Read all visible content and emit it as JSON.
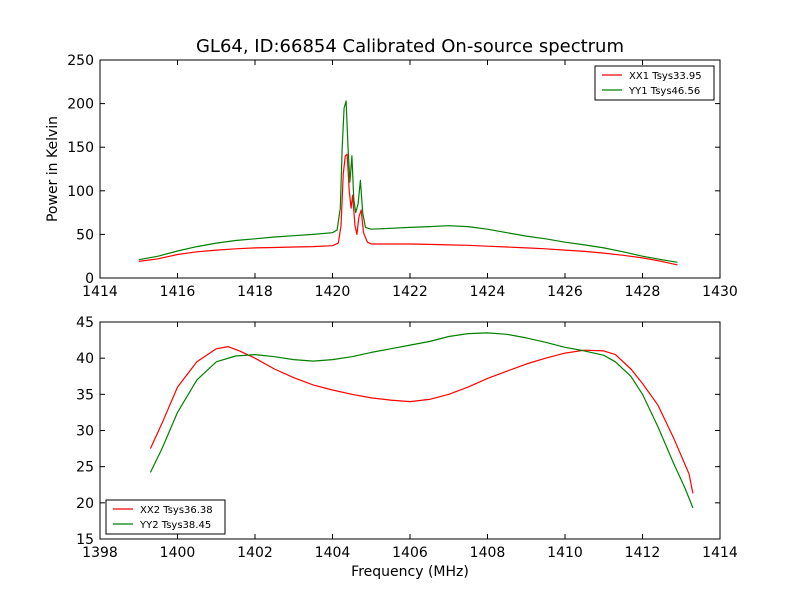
{
  "chart_data": [
    {
      "type": "line",
      "title": "GL64, ID:66854 Calibrated On-source spectrum",
      "xlabel": "",
      "ylabel": "Power in Kelvin",
      "xlim": [
        1414,
        1430
      ],
      "ylim": [
        0,
        250
      ],
      "xticks": [
        1414,
        1416,
        1418,
        1420,
        1422,
        1424,
        1426,
        1428,
        1430
      ],
      "yticks": [
        0,
        50,
        100,
        150,
        200,
        250
      ],
      "legend_position": "top-right",
      "grid": false,
      "series": [
        {
          "name": "XX1 Tsys33.95",
          "color": "#ff0000",
          "points": [
            [
              1415.0,
              19
            ],
            [
              1415.5,
              22
            ],
            [
              1416.0,
              27
            ],
            [
              1416.5,
              30
            ],
            [
              1417.0,
              32
            ],
            [
              1417.5,
              33.5
            ],
            [
              1418.0,
              34.5
            ],
            [
              1418.5,
              35
            ],
            [
              1419.0,
              35.5
            ],
            [
              1419.5,
              36
            ],
            [
              1420.0,
              37
            ],
            [
              1420.15,
              40
            ],
            [
              1420.22,
              60
            ],
            [
              1420.28,
              120
            ],
            [
              1420.33,
              140
            ],
            [
              1420.38,
              142
            ],
            [
              1420.43,
              100
            ],
            [
              1420.48,
              80
            ],
            [
              1420.52,
              95
            ],
            [
              1420.58,
              60
            ],
            [
              1420.63,
              50
            ],
            [
              1420.68,
              70
            ],
            [
              1420.74,
              78
            ],
            [
              1420.8,
              52
            ],
            [
              1420.9,
              41
            ],
            [
              1421.0,
              39
            ],
            [
              1421.5,
              39
            ],
            [
              1422.0,
              39
            ],
            [
              1422.5,
              38.5
            ],
            [
              1423.0,
              38
            ],
            [
              1423.5,
              37.5
            ],
            [
              1424.0,
              36.5
            ],
            [
              1424.5,
              35.5
            ],
            [
              1425.0,
              34.5
            ],
            [
              1425.5,
              33.5
            ],
            [
              1426.0,
              32
            ],
            [
              1426.5,
              30.5
            ],
            [
              1427.0,
              28.5
            ],
            [
              1427.5,
              26
            ],
            [
              1428.0,
              23
            ],
            [
              1428.5,
              19
            ],
            [
              1428.9,
              15
            ]
          ]
        },
        {
          "name": "YY1 Tsys46.56",
          "color": "#008000",
          "points": [
            [
              1415.0,
              21
            ],
            [
              1415.5,
              25
            ],
            [
              1416.0,
              31
            ],
            [
              1416.5,
              36
            ],
            [
              1417.0,
              40
            ],
            [
              1417.5,
              43
            ],
            [
              1418.0,
              45
            ],
            [
              1418.5,
              47
            ],
            [
              1419.0,
              48.5
            ],
            [
              1419.5,
              50
            ],
            [
              1420.0,
              52
            ],
            [
              1420.12,
              55
            ],
            [
              1420.2,
              80
            ],
            [
              1420.25,
              150
            ],
            [
              1420.3,
              195
            ],
            [
              1420.35,
              203
            ],
            [
              1420.4,
              150
            ],
            [
              1420.45,
              110
            ],
            [
              1420.5,
              140
            ],
            [
              1420.55,
              90
            ],
            [
              1420.6,
              75
            ],
            [
              1420.66,
              85
            ],
            [
              1420.72,
              112
            ],
            [
              1420.78,
              75
            ],
            [
              1420.85,
              58
            ],
            [
              1421.0,
              56
            ],
            [
              1421.5,
              57
            ],
            [
              1422.0,
              58
            ],
            [
              1422.5,
              59
            ],
            [
              1423.0,
              60
            ],
            [
              1423.5,
              59
            ],
            [
              1424.0,
              56
            ],
            [
              1424.5,
              52
            ],
            [
              1425.0,
              48
            ],
            [
              1425.5,
              45
            ],
            [
              1426.0,
              41
            ],
            [
              1426.5,
              38
            ],
            [
              1427.0,
              34.5
            ],
            [
              1427.5,
              30
            ],
            [
              1428.0,
              25
            ],
            [
              1428.5,
              21
            ],
            [
              1428.9,
              18
            ]
          ]
        }
      ]
    },
    {
      "type": "line",
      "title": "",
      "xlabel": "Frequency (MHz)",
      "ylabel": "",
      "xlim": [
        1398,
        1414
      ],
      "ylim": [
        15,
        45
      ],
      "xticks": [
        1398,
        1400,
        1402,
        1404,
        1406,
        1408,
        1410,
        1412,
        1414
      ],
      "yticks": [
        15,
        20,
        25,
        30,
        35,
        40,
        45
      ],
      "legend_position": "bottom-left",
      "grid": false,
      "series": [
        {
          "name": "XX2 Tsys36.38",
          "color": "#ff0000",
          "points": [
            [
              1399.3,
              27.5
            ],
            [
              1399.6,
              31
            ],
            [
              1400.0,
              36
            ],
            [
              1400.5,
              39.5
            ],
            [
              1401.0,
              41.3
            ],
            [
              1401.3,
              41.6
            ],
            [
              1401.6,
              41
            ],
            [
              1402.0,
              40
            ],
            [
              1402.5,
              38.5
            ],
            [
              1403.0,
              37.3
            ],
            [
              1403.5,
              36.3
            ],
            [
              1404.0,
              35.6
            ],
            [
              1404.5,
              35
            ],
            [
              1405.0,
              34.5
            ],
            [
              1405.5,
              34.2
            ],
            [
              1406.0,
              34
            ],
            [
              1406.5,
              34.3
            ],
            [
              1407.0,
              35
            ],
            [
              1407.5,
              36
            ],
            [
              1408.0,
              37.2
            ],
            [
              1408.5,
              38.2
            ],
            [
              1409.0,
              39.2
            ],
            [
              1409.5,
              40
            ],
            [
              1410.0,
              40.7
            ],
            [
              1410.5,
              41.1
            ],
            [
              1411.0,
              41
            ],
            [
              1411.3,
              40.5
            ],
            [
              1411.7,
              38.5
            ],
            [
              1412.0,
              36.5
            ],
            [
              1412.4,
              33.5
            ],
            [
              1412.8,
              29
            ],
            [
              1413.2,
              24
            ],
            [
              1413.3,
              21.3
            ]
          ]
        },
        {
          "name": "YY2 Tsys38.45",
          "color": "#008000",
          "points": [
            [
              1399.3,
              24.2
            ],
            [
              1399.6,
              27.5
            ],
            [
              1400.0,
              32.5
            ],
            [
              1400.5,
              37
            ],
            [
              1401.0,
              39.5
            ],
            [
              1401.5,
              40.3
            ],
            [
              1402.0,
              40.5
            ],
            [
              1402.5,
              40.2
            ],
            [
              1403.0,
              39.8
            ],
            [
              1403.5,
              39.6
            ],
            [
              1404.0,
              39.8
            ],
            [
              1404.5,
              40.2
            ],
            [
              1405.0,
              40.8
            ],
            [
              1405.5,
              41.3
            ],
            [
              1406.0,
              41.8
            ],
            [
              1406.5,
              42.3
            ],
            [
              1407.0,
              43
            ],
            [
              1407.5,
              43.4
            ],
            [
              1408.0,
              43.5
            ],
            [
              1408.5,
              43.3
            ],
            [
              1409.0,
              42.8
            ],
            [
              1409.5,
              42.2
            ],
            [
              1410.0,
              41.5
            ],
            [
              1410.5,
              41
            ],
            [
              1411.0,
              40.4
            ],
            [
              1411.3,
              39.5
            ],
            [
              1411.7,
              37.5
            ],
            [
              1412.0,
              35
            ],
            [
              1412.4,
              30.5
            ],
            [
              1412.8,
              25.5
            ],
            [
              1413.1,
              22
            ],
            [
              1413.3,
              19.3
            ]
          ]
        }
      ]
    }
  ]
}
